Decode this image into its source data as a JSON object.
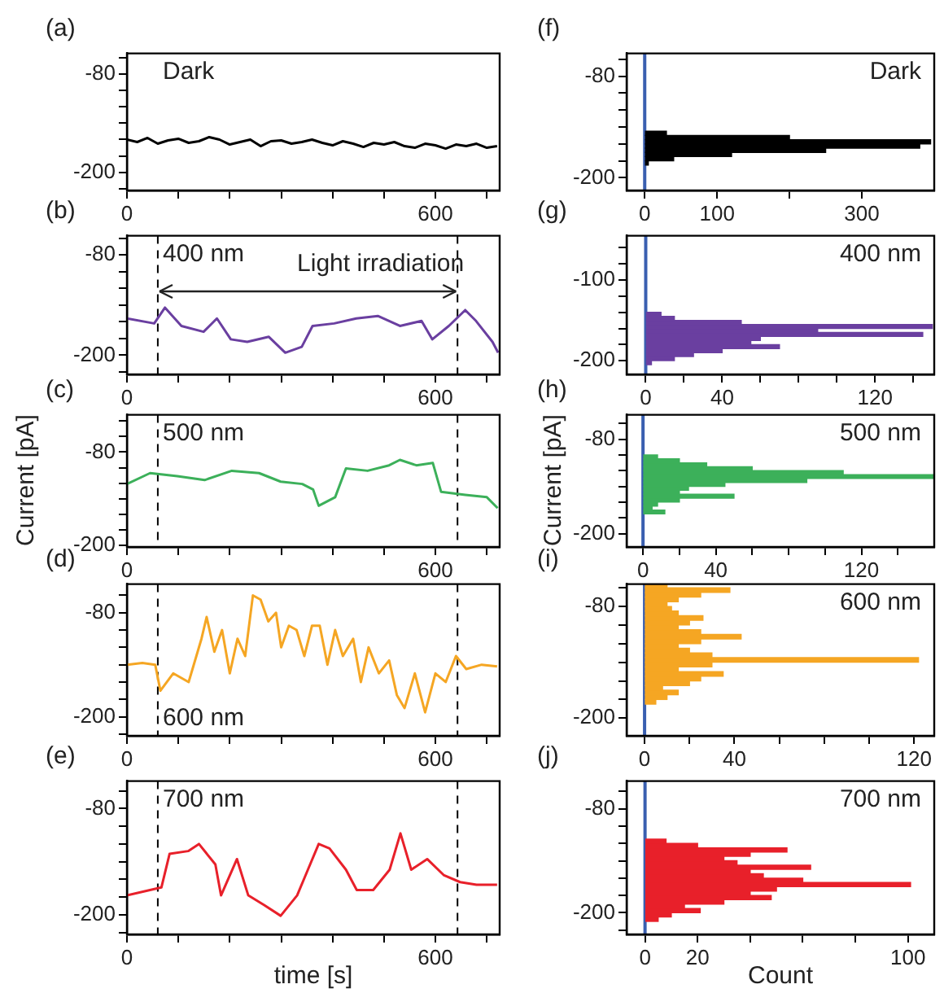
{
  "chart_data": [
    {
      "type": "line",
      "title": "(a)",
      "annotations": [
        "Dark"
      ],
      "color": "#000000",
      "xlim": [
        0,
        725
      ],
      "ylim": [
        -222,
        -55
      ],
      "xticks": [
        0,
        {
          "value": 100,
          "label": null
        },
        {
          "value": 200,
          "label": null
        },
        {
          "value": 300,
          "label": null
        },
        {
          "value": 400,
          "label": null
        },
        {
          "value": 500,
          "label": null
        },
        600,
        {
          "value": 700,
          "label": null
        }
      ],
      "yticks": [
        {
          "value": -60,
          "label": null
        },
        -80,
        {
          "value": -100,
          "label": null
        },
        {
          "value": -120,
          "label": null
        },
        {
          "value": -140,
          "label": null
        },
        {
          "value": -160,
          "label": null
        },
        {
          "value": -180,
          "label": null
        },
        -200,
        {
          "value": -220,
          "label": null
        }
      ],
      "x": [
        0,
        20,
        40,
        60,
        80,
        100,
        120,
        140,
        160,
        180,
        200,
        220,
        240,
        260,
        280,
        300,
        320,
        340,
        360,
        380,
        400,
        420,
        440,
        460,
        480,
        500,
        520,
        540,
        560,
        580,
        600,
        620,
        640,
        660,
        680,
        700,
        720
      ],
      "values": [
        -160,
        -163,
        -158,
        -165,
        -161,
        -159,
        -164,
        -162,
        -157,
        -160,
        -166,
        -163,
        -160,
        -168,
        -162,
        -161,
        -165,
        -163,
        -160,
        -164,
        -167,
        -162,
        -165,
        -169,
        -164,
        -166,
        -163,
        -168,
        -170,
        -165,
        -167,
        -171,
        -166,
        -168,
        -165,
        -170,
        -168
      ]
    },
    {
      "type": "line",
      "title": "(b)",
      "annotations": [
        "400 nm",
        "Light irradiation"
      ],
      "color": "#6a3fa0",
      "xlim": [
        0,
        725
      ],
      "ylim": [
        -223,
        -57
      ],
      "xticks": [
        0,
        {
          "value": 100,
          "label": null
        },
        {
          "value": 200,
          "label": null
        },
        {
          "value": 300,
          "label": null
        },
        {
          "value": 400,
          "label": null
        },
        {
          "value": 500,
          "label": null
        },
        600,
        {
          "value": 700,
          "label": null
        }
      ],
      "yticks": [
        {
          "value": -60,
          "label": null
        },
        -80,
        {
          "value": -100,
          "label": null
        },
        {
          "value": -120,
          "label": null
        },
        {
          "value": -140,
          "label": null
        },
        {
          "value": -160,
          "label": null
        },
        {
          "value": -180,
          "label": null
        },
        -200,
        {
          "value": -220,
          "label": null
        }
      ],
      "ref_lines": [
        {
          "axis": "x",
          "value": 60,
          "line_style": "dashed",
          "color": "#000000"
        },
        {
          "axis": "x",
          "value": 643,
          "line_style": "dashed",
          "color": "#000000"
        }
      ],
      "x": [
        0,
        53,
        74,
        106,
        149,
        175,
        202,
        234,
        276,
        308,
        340,
        361,
        403,
        446,
        488,
        531,
        573,
        594,
        626,
        658,
        679,
        711,
        722
      ],
      "values": [
        -156,
        -162,
        -143,
        -165,
        -172,
        -156,
        -181,
        -184,
        -178,
        -197,
        -190,
        -165,
        -162,
        -156,
        -153,
        -165,
        -159,
        -181,
        -165,
        -146,
        -159,
        -184,
        -197
      ]
    },
    {
      "type": "line",
      "title": "(c)",
      "ylabel": "Current [pA]",
      "annotations": [
        "500 nm"
      ],
      "color": "#3cb05a",
      "xlim": [
        0,
        725
      ],
      "ylim": [
        -202,
        -32
      ],
      "xticks": [
        0,
        {
          "value": 100,
          "label": null
        },
        {
          "value": 200,
          "label": null
        },
        {
          "value": 300,
          "label": null
        },
        {
          "value": 400,
          "label": null
        },
        {
          "value": 500,
          "label": null
        },
        600,
        {
          "value": 700,
          "label": null
        }
      ],
      "yticks": [
        {
          "value": -40,
          "label": null
        },
        {
          "value": -60,
          "label": null
        },
        -80,
        {
          "value": -100,
          "label": null
        },
        {
          "value": -120,
          "label": null
        },
        {
          "value": -140,
          "label": null
        },
        {
          "value": -160,
          "label": null
        },
        {
          "value": -180,
          "label": null
        },
        -200
      ],
      "ref_lines": [
        {
          "axis": "x",
          "value": 60,
          "line_style": "dashed",
          "color": "#000000"
        },
        {
          "axis": "x",
          "value": 643,
          "line_style": "dashed",
          "color": "#000000"
        }
      ],
      "x": [
        0,
        45,
        98,
        151,
        204,
        257,
        299,
        341,
        362,
        373,
        405,
        426,
        468,
        510,
        531,
        563,
        595,
        611,
        658,
        700,
        721
      ],
      "values": [
        -121,
        -107,
        -111,
        -116,
        -104,
        -107,
        -118,
        -121,
        -128,
        -149,
        -138,
        -101,
        -104,
        -97,
        -90,
        -97,
        -94,
        -131,
        -135,
        -138,
        -152
      ]
    },
    {
      "type": "line",
      "title": "(d)",
      "annotations": [
        "600 nm"
      ],
      "color": "#f5a623",
      "xlim": [
        0,
        725
      ],
      "ylim": [
        -222,
        -47
      ],
      "xticks": [
        0,
        {
          "value": 100,
          "label": null
        },
        {
          "value": 200,
          "label": null
        },
        {
          "value": 300,
          "label": null
        },
        {
          "value": 400,
          "label": null
        },
        {
          "value": 500,
          "label": null
        },
        600,
        {
          "value": 700,
          "label": null
        }
      ],
      "yticks": [
        {
          "value": -60,
          "label": null
        },
        -80,
        {
          "value": -100,
          "label": null
        },
        {
          "value": -120,
          "label": null
        },
        {
          "value": -140,
          "label": null
        },
        {
          "value": -160,
          "label": null
        },
        {
          "value": -180,
          "label": null
        },
        -200,
        {
          "value": -220,
          "label": null
        }
      ],
      "ref_lines": [
        {
          "axis": "x",
          "value": 60,
          "line_style": "dashed",
          "color": "#000000"
        },
        {
          "axis": "x",
          "value": 643,
          "line_style": "dashed",
          "color": "#000000"
        }
      ],
      "x": [
        0,
        30,
        55,
        65,
        90,
        120,
        145,
        155,
        170,
        185,
        200,
        215,
        230,
        245,
        260,
        275,
        290,
        300,
        315,
        330,
        345,
        360,
        375,
        390,
        405,
        420,
        440,
        455,
        470,
        490,
        510,
        525,
        540,
        560,
        580,
        600,
        620,
        640,
        660,
        690,
        720
      ],
      "values": [
        -140,
        -138,
        -140,
        -170,
        -150,
        -160,
        -110,
        -85,
        -125,
        -100,
        -150,
        -110,
        -130,
        -60,
        -65,
        -90,
        -80,
        -120,
        -95,
        -100,
        -130,
        -95,
        -95,
        -140,
        -100,
        -130,
        -110,
        -160,
        -120,
        -150,
        -135,
        -175,
        -190,
        -150,
        -195,
        -150,
        -160,
        -130,
        -145,
        -140,
        -142
      ]
    },
    {
      "type": "line",
      "title": "(e)",
      "xlabel": "time [s]",
      "annotations": [
        "700 nm"
      ],
      "color": "#e8202a",
      "xlim": [
        0,
        725
      ],
      "ylim": [
        -222,
        -49
      ],
      "xticks": [
        0,
        {
          "value": 100,
          "label": null
        },
        {
          "value": 200,
          "label": null
        },
        {
          "value": 300,
          "label": null
        },
        {
          "value": 400,
          "label": null
        },
        {
          "value": 500,
          "label": null
        },
        600,
        {
          "value": 700,
          "label": null
        }
      ],
      "yticks": [
        {
          "value": -60,
          "label": null
        },
        -80,
        {
          "value": -100,
          "label": null
        },
        {
          "value": -120,
          "label": null
        },
        {
          "value": -140,
          "label": null
        },
        {
          "value": -160,
          "label": null
        },
        {
          "value": -180,
          "label": null
        },
        -200,
        {
          "value": -220,
          "label": null
        }
      ],
      "ref_lines": [
        {
          "axis": "x",
          "value": 60,
          "line_style": "dashed",
          "color": "#000000"
        },
        {
          "axis": "x",
          "value": 643,
          "line_style": "dashed",
          "color": "#000000"
        }
      ],
      "x": [
        0,
        67,
        83,
        119,
        140,
        172,
        183,
        214,
        236,
        267,
        299,
        331,
        352,
        373,
        394,
        426,
        447,
        479,
        511,
        532,
        553,
        584,
        616,
        648,
        680,
        720
      ],
      "values": [
        -178,
        -169,
        -131,
        -128,
        -120,
        -143,
        -178,
        -137,
        -178,
        -189,
        -201,
        -178,
        -149,
        -120,
        -125,
        -149,
        -172,
        -172,
        -149,
        -108,
        -149,
        -137,
        -155,
        -163,
        -166,
        -166
      ]
    },
    {
      "type": "histogram",
      "orientation": "horizontal",
      "title": "(f)",
      "annotations": [
        "Dark"
      ],
      "color": "#000000",
      "xlim": [
        -25,
        400
      ],
      "ylim": [
        -215,
        -53
      ],
      "xticks": [
        0,
        100,
        {
          "value": 200,
          "label": null
        },
        300
      ],
      "yticks": [
        {
          "value": -60,
          "label": null
        },
        -80,
        {
          "value": -100,
          "label": null
        },
        {
          "value": -120,
          "label": null
        },
        {
          "value": -140,
          "label": null
        },
        {
          "value": -160,
          "label": null
        },
        {
          "value": -180,
          "label": null
        },
        -200
      ],
      "ref_lines": [
        {
          "axis": "x",
          "value": 0,
          "color": "#3a5fb0"
        }
      ],
      "bins": [
        -185,
        -180,
        -175,
        -170,
        -165,
        -160,
        -155,
        -150,
        -145
      ],
      "values": [
        5,
        40,
        120,
        250,
        380,
        395,
        200,
        30
      ]
    },
    {
      "type": "histogram",
      "orientation": "horizontal",
      "title": "(g)",
      "annotations": [
        "400 nm"
      ],
      "color": "#6a3fa0",
      "xlim": [
        -10,
        151
      ],
      "ylim": [
        -217,
        -45
      ],
      "xticks": [
        0,
        {
          "value": 20,
          "label": null
        },
        40,
        {
          "value": 60,
          "label": null
        },
        {
          "value": 80,
          "label": null
        },
        {
          "value": 100,
          "label": null
        },
        120,
        {
          "value": 140,
          "label": null
        }
      ],
      "yticks": [
        {
          "value": -60,
          "label": null
        },
        {
          "value": -80,
          "label": null
        },
        -100,
        {
          "value": -120,
          "label": null
        },
        {
          "value": -140,
          "label": null
        },
        {
          "value": -160,
          "label": null
        },
        {
          "value": -180,
          "label": null
        },
        -200
      ],
      "ref_lines": [
        {
          "axis": "x",
          "value": 0,
          "color": "#3a5fb0"
        }
      ],
      "bins": [
        -205,
        -200,
        -195,
        -190,
        -185,
        -180,
        -175,
        -170,
        -165,
        -160,
        -155,
        -150,
        -145,
        -140
      ],
      "values": [
        3,
        15,
        25,
        40,
        70,
        55,
        60,
        145,
        90,
        150,
        50,
        15,
        8
      ]
    },
    {
      "type": "histogram",
      "orientation": "horizontal",
      "title": "(h)",
      "ylabel": "Current [pA]",
      "annotations": [
        "500 nm"
      ],
      "color": "#3cb05a",
      "xlim": [
        -9,
        160
      ],
      "ylim": [
        -217,
        -49
      ],
      "xticks": [
        0,
        {
          "value": 20,
          "label": null
        },
        40,
        {
          "value": 60,
          "label": null
        },
        {
          "value": 80,
          "label": null
        },
        {
          "value": 100,
          "label": null
        },
        120,
        {
          "value": 140,
          "label": null
        }
      ],
      "yticks": [
        {
          "value": -60,
          "label": null
        },
        -80,
        {
          "value": -100,
          "label": null
        },
        {
          "value": -120,
          "label": null
        },
        {
          "value": -140,
          "label": null
        },
        {
          "value": -160,
          "label": null
        },
        {
          "value": -180,
          "label": null
        },
        -200
      ],
      "ref_lines": [
        {
          "axis": "x",
          "value": 0,
          "color": "#3a5fb0"
        }
      ],
      "bins": [
        -175,
        -170,
        -165,
        -160,
        -155,
        -150,
        -145,
        -140,
        -135,
        -130,
        -125,
        -120,
        -115,
        -110,
        -105,
        -100
      ],
      "values": [
        12,
        5,
        8,
        20,
        50,
        20,
        25,
        45,
        90,
        160,
        110,
        60,
        35,
        20,
        8
      ]
    },
    {
      "type": "histogram",
      "orientation": "horizontal",
      "title": "(i)",
      "annotations": [
        "600 nm"
      ],
      "color": "#f5a623",
      "xlim": [
        -8,
        129
      ],
      "ylim": [
        -219,
        -56
      ],
      "xticks": [
        0,
        {
          "value": 20,
          "label": null
        },
        40,
        {
          "value": 60,
          "label": null
        },
        {
          "value": 80,
          "label": null
        },
        {
          "value": 100,
          "label": null
        },
        120
      ],
      "yticks": [
        {
          "value": -60,
          "label": null
        },
        -80,
        {
          "value": -100,
          "label": null
        },
        {
          "value": -120,
          "label": null
        },
        {
          "value": -140,
          "label": null
        },
        {
          "value": -160,
          "label": null
        },
        {
          "value": -180,
          "label": null
        },
        -200
      ],
      "ref_lines": [
        {
          "axis": "x",
          "value": 0,
          "color": "#3a5fb0"
        }
      ],
      "bins": [
        -185,
        -180,
        -175,
        -170,
        -165,
        -160,
        -155,
        -150,
        -145,
        -140,
        -135,
        -130,
        -125,
        -120,
        -115,
        -110,
        -105,
        -100,
        -95,
        -90,
        -85,
        -80,
        -75,
        -70,
        -65,
        -60,
        -55
      ],
      "values": [
        5,
        10,
        15,
        8,
        20,
        25,
        35,
        15,
        30,
        122,
        30,
        20,
        15,
        25,
        43,
        25,
        15,
        20,
        26,
        15,
        12,
        10,
        15,
        25,
        38,
        10
      ]
    },
    {
      "type": "histogram",
      "orientation": "horizontal",
      "title": "(j)",
      "xlabel": "Count",
      "annotations": [
        "700 nm"
      ],
      "color": "#e8202a",
      "xlim": [
        -7,
        110
      ],
      "ylim": [
        -225,
        -48
      ],
      "xticks": [
        0,
        20,
        {
          "value": 40,
          "label": null
        },
        {
          "value": 60,
          "label": null
        },
        {
          "value": 80,
          "label": null
        },
        100
      ],
      "yticks": [
        {
          "value": -60,
          "label": null
        },
        -80,
        {
          "value": -100,
          "label": null
        },
        {
          "value": -120,
          "label": null
        },
        {
          "value": -140,
          "label": null
        },
        {
          "value": -160,
          "label": null
        },
        {
          "value": -180,
          "label": null
        },
        -200,
        {
          "value": -220,
          "label": null
        }
      ],
      "ref_lines": [
        {
          "axis": "x",
          "value": 0,
          "color": "#3a5fb0"
        }
      ],
      "bins": [
        -210,
        -205,
        -200,
        -195,
        -190,
        -185,
        -180,
        -175,
        -170,
        -165,
        -160,
        -155,
        -150,
        -145,
        -140,
        -135,
        -130,
        -125,
        -120,
        -115
      ],
      "values": [
        5,
        10,
        21,
        15,
        30,
        48,
        40,
        50,
        101,
        60,
        45,
        40,
        63,
        35,
        30,
        40,
        54,
        20,
        8
      ]
    }
  ]
}
